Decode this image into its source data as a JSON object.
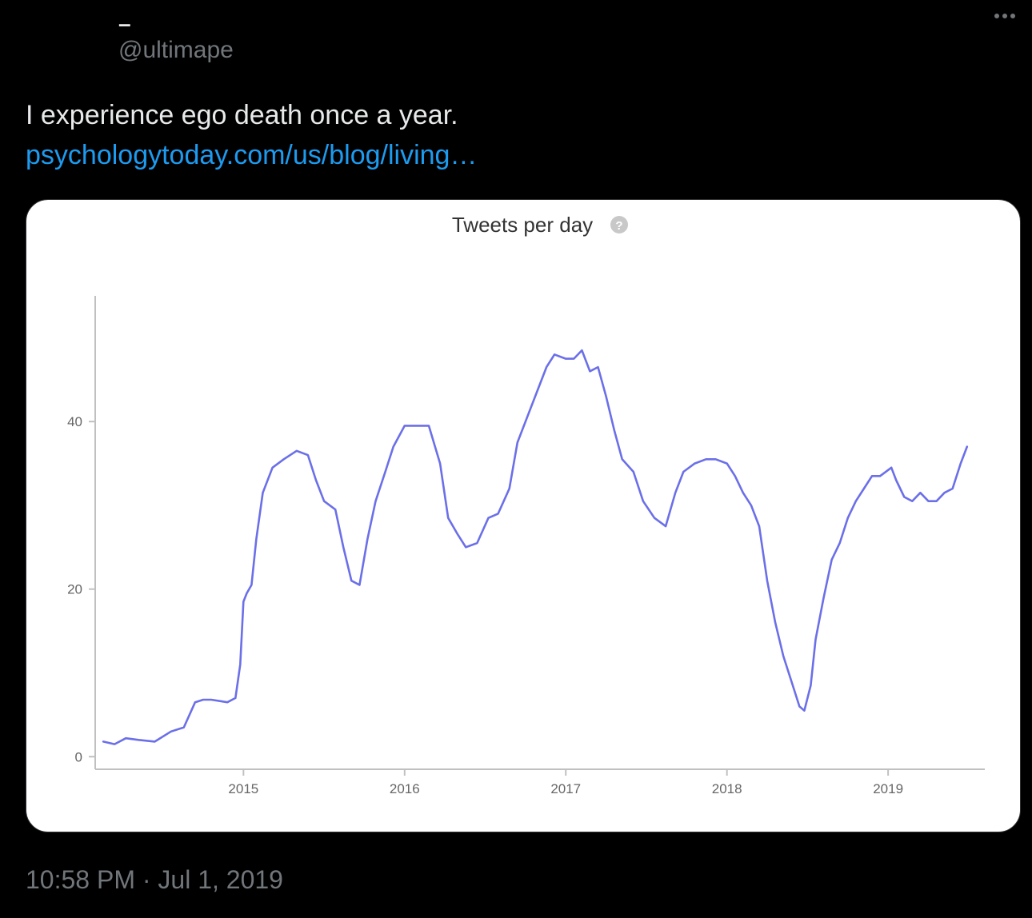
{
  "tweet": {
    "display_name": "–",
    "handle": "@ultimape",
    "text": "I experience ego death once a year.",
    "link_text": "psychologytoday.com/us/blog/living…",
    "timestamp": "10:58 PM · Jul 1, 2019",
    "more_icon": "ellipsis-horizontal-icon",
    "colors": {
      "background": "#000000",
      "text": "#e7e9ea",
      "muted": "#71767b",
      "link": "#1d9bf0"
    }
  },
  "chart_data": {
    "type": "line",
    "title": "Tweets per day",
    "help_icon": "question-circle-icon",
    "xlabel": "",
    "ylabel": "",
    "x_ticks": [
      "2015",
      "2016",
      "2017",
      "2018",
      "2019"
    ],
    "y_ticks": [
      0,
      20,
      40
    ],
    "xlim": [
      2014.08,
      2019.6
    ],
    "ylim": [
      -1.5,
      55
    ],
    "grid": false,
    "legend": "none",
    "series": [
      {
        "color": "#6b6fe8",
        "x": [
          2014.13,
          2014.2,
          2014.27,
          2014.35,
          2014.45,
          2014.55,
          2014.63,
          2014.7,
          2014.75,
          2014.8,
          2014.9,
          2014.95,
          2014.98,
          2015.0,
          2015.02,
          2015.05,
          2015.08,
          2015.12,
          2015.18,
          2015.25,
          2015.33,
          2015.4,
          2015.45,
          2015.5,
          2015.57,
          2015.62,
          2015.67,
          2015.72,
          2015.77,
          2015.82,
          2015.88,
          2015.93,
          2016.0,
          2016.07,
          2016.15,
          2016.22,
          2016.27,
          2016.33,
          2016.38,
          2016.45,
          2016.52,
          2016.58,
          2016.65,
          2016.7,
          2016.77,
          2016.82,
          2016.88,
          2016.93,
          2017.0,
          2017.05,
          2017.1,
          2017.15,
          2017.2,
          2017.25,
          2017.3,
          2017.35,
          2017.42,
          2017.48,
          2017.55,
          2017.62,
          2017.68,
          2017.73,
          2017.8,
          2017.87,
          2017.93,
          2018.0,
          2018.05,
          2018.1,
          2018.15,
          2018.2,
          2018.25,
          2018.3,
          2018.35,
          2018.4,
          2018.45,
          2018.48,
          2018.52,
          2018.55,
          2018.6,
          2018.65,
          2018.7,
          2018.75,
          2018.8,
          2018.85,
          2018.9,
          2018.95,
          2019.02,
          2019.05,
          2019.1,
          2019.15,
          2019.2,
          2019.25,
          2019.3,
          2019.35,
          2019.4,
          2019.45,
          2019.49
        ],
        "values": [
          1.8,
          1.5,
          2.2,
          2.0,
          1.8,
          3.0,
          3.5,
          6.5,
          6.8,
          6.8,
          6.5,
          7.0,
          11.0,
          18.5,
          19.5,
          20.5,
          26.0,
          31.5,
          34.5,
          35.5,
          36.5,
          36.0,
          33.0,
          30.5,
          29.5,
          25.0,
          21.0,
          20.5,
          26.0,
          30.5,
          34.0,
          37.0,
          39.5,
          39.5,
          39.5,
          35.0,
          28.5,
          26.5,
          25.0,
          25.5,
          28.5,
          29.0,
          32.0,
          37.5,
          41.0,
          43.5,
          46.5,
          48.0,
          47.5,
          47.5,
          48.5,
          46.0,
          46.5,
          43.0,
          39.0,
          35.5,
          34.0,
          30.5,
          28.5,
          27.5,
          31.5,
          34.0,
          35.0,
          35.5,
          35.5,
          35.0,
          33.5,
          31.5,
          30.0,
          27.5,
          21.0,
          16.0,
          12.0,
          9.0,
          6.0,
          5.5,
          8.5,
          14.0,
          19.0,
          23.5,
          25.5,
          28.5,
          30.5,
          32.0,
          33.5,
          33.5,
          34.5,
          33.0,
          31.0,
          30.5,
          31.5,
          30.5,
          30.5,
          31.5,
          32.0,
          35.0,
          37.0
        ]
      }
    ]
  }
}
